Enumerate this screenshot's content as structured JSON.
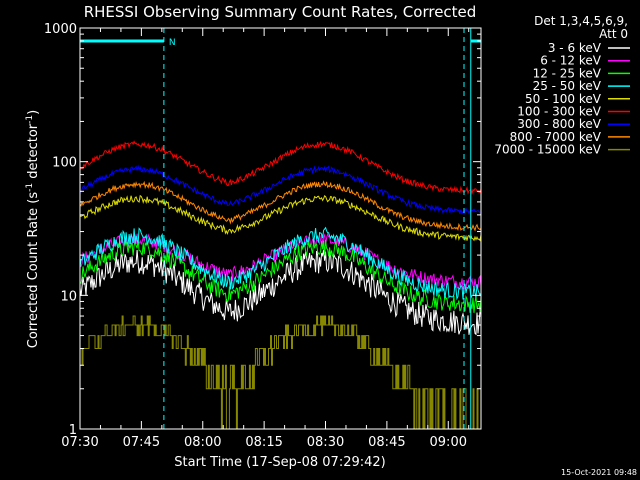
{
  "chart_data": {
    "type": "line",
    "title": "RHESSI Observing Summary Count Rates, Corrected",
    "xlabel": "Start Time (17-Sep-08 07:29:42)",
    "ylabel": "Corrected Count Rate (s",
    "ylabel_sup1": "-1",
    "ylabel_mid": " detector",
    "ylabel_sup2": "-1",
    "ylabel_end": ")",
    "yscale": "log",
    "ylim": [
      1,
      1000
    ],
    "xlim_minutes_after_0730": [
      0,
      98
    ],
    "x_ticks": [
      {
        "label": "07:30",
        "m": 0
      },
      {
        "label": "07:45",
        "m": 15
      },
      {
        "label": "08:00",
        "m": 30
      },
      {
        "label": "08:15",
        "m": 45
      },
      {
        "label": "08:30",
        "m": 60
      },
      {
        "label": "08:45",
        "m": 75
      },
      {
        "label": "09:00",
        "m": 90
      }
    ],
    "y_ticks": [
      {
        "label": "1",
        "v": 1
      },
      {
        "label": "10",
        "v": 10
      },
      {
        "label": "100",
        "v": 100
      },
      {
        "label": "1000",
        "v": 1000
      }
    ],
    "legend_header": [
      "Det 1,3,4,5,6,9,",
      "Att 0"
    ],
    "legend_placement": "right",
    "night_marker_label": "N",
    "night_intervals_minutes": [
      [
        0,
        20.5
      ],
      [
        95.5,
        115
      ]
    ],
    "series": [
      {
        "name": "3 - 6 keV",
        "color": "#ffffff",
        "base": 6.2,
        "peak": 18,
        "noise": 0.22
      },
      {
        "name": "6 - 12 keV",
        "color": "#ff00ff",
        "base": 12.5,
        "peak": 26,
        "noise": 0.12
      },
      {
        "name": "12 - 25 keV",
        "color": "#00ff00",
        "base": 8.5,
        "peak": 23,
        "noise": 0.15
      },
      {
        "name": "25 - 50 keV",
        "color": "#00ffff",
        "base": 10.5,
        "peak": 28,
        "noise": 0.14
      },
      {
        "name": "50 - 100 keV",
        "color": "#dddd00",
        "base": 27,
        "peak": 53,
        "noise": 0.06
      },
      {
        "name": "100 - 300 keV",
        "color": "#ff0000",
        "base": 60,
        "peak": 135,
        "noise": 0.05
      },
      {
        "name": "300 - 800 keV",
        "color": "#0000ff",
        "base": 42,
        "peak": 88,
        "noise": 0.05
      },
      {
        "name": "800 - 7000 keV",
        "color": "#ff8800",
        "base": 32,
        "peak": 68,
        "noise": 0.05
      },
      {
        "name": "7000 - 15000 keV",
        "color": "#888800",
        "base": 1,
        "peak": 6,
        "noise": 0,
        "step": true
      }
    ],
    "orbit_peaks_minutes": [
      14,
      59
    ],
    "orbit_period_minutes": 96,
    "legend_color_samples": [
      "#ffffff",
      "#ff00ff",
      "#00ff00",
      "#00ffff",
      "#dddd00",
      "#ff0000",
      "#0000ff",
      "#ff8800",
      "#888800"
    ]
  },
  "footer_timestamp": "15-Oct-2021 09:48"
}
